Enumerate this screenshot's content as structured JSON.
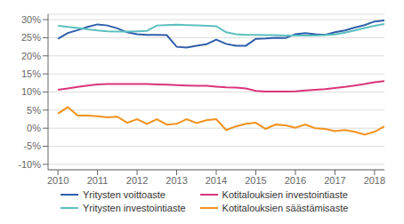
{
  "chart_data": {
    "type": "line",
    "title": "",
    "x": [
      2010.0,
      2010.25,
      2010.5,
      2010.75,
      2011.0,
      2011.25,
      2011.5,
      2011.75,
      2012.0,
      2012.25,
      2012.5,
      2012.75,
      2013.0,
      2013.25,
      2013.5,
      2013.75,
      2014.0,
      2014.25,
      2014.5,
      2014.75,
      2015.0,
      2015.25,
      2015.5,
      2015.75,
      2016.0,
      2016.25,
      2016.5,
      2016.75,
      2017.0,
      2017.25,
      2017.5,
      2017.75,
      2018.0,
      2018.25
    ],
    "series": [
      {
        "name": "Yritysten voittoaste",
        "color": "#2e5ea8",
        "values": [
          0.247,
          0.263,
          0.271,
          0.28,
          0.287,
          0.284,
          0.276,
          0.265,
          0.26,
          0.258,
          0.258,
          0.257,
          0.225,
          0.223,
          0.228,
          0.232,
          0.245,
          0.233,
          0.228,
          0.228,
          0.247,
          0.248,
          0.25,
          0.249,
          0.26,
          0.263,
          0.26,
          0.258,
          0.265,
          0.27,
          0.278,
          0.285,
          0.295,
          0.298
        ]
      },
      {
        "name": "Kotitalouksien investointiaste",
        "color": "#d9347a",
        "values": [
          0.106,
          0.11,
          0.114,
          0.118,
          0.121,
          0.122,
          0.122,
          0.122,
          0.122,
          0.122,
          0.121,
          0.12,
          0.119,
          0.118,
          0.117,
          0.117,
          0.115,
          0.113,
          0.112,
          0.11,
          0.103,
          0.101,
          0.101,
          0.101,
          0.102,
          0.104,
          0.106,
          0.108,
          0.111,
          0.114,
          0.118,
          0.122,
          0.127,
          0.13
        ]
      },
      {
        "name": "Yritysten investointiaste",
        "color": "#5bbfbe",
        "values": [
          0.283,
          0.28,
          0.277,
          0.273,
          0.27,
          0.268,
          0.267,
          0.267,
          0.268,
          0.269,
          0.284,
          0.285,
          0.286,
          0.285,
          0.284,
          0.283,
          0.282,
          0.265,
          0.26,
          0.258,
          0.258,
          0.257,
          0.257,
          0.256,
          0.256,
          0.256,
          0.256,
          0.257,
          0.259,
          0.264,
          0.27,
          0.277,
          0.283,
          0.288
        ]
      },
      {
        "name": "Kotitalouksien säästämisaste",
        "color": "#f0921e",
        "values": [
          0.04,
          0.058,
          0.035,
          0.035,
          0.033,
          0.03,
          0.032,
          0.015,
          0.025,
          0.012,
          0.025,
          0.01,
          0.012,
          0.025,
          0.014,
          0.022,
          0.025,
          -0.005,
          0.005,
          0.012,
          0.015,
          -0.002,
          0.01,
          0.008,
          0.001,
          0.01,
          0.0,
          -0.002,
          -0.008,
          -0.005,
          -0.01,
          -0.018,
          -0.01,
          0.005
        ]
      }
    ],
    "xlim": [
      2009.75,
      2018.25
    ],
    "xticks": [
      2010,
      2011,
      2012,
      2013,
      2014,
      2015,
      2016,
      2017,
      2018
    ],
    "ylim": [
      -0.115,
      0.315
    ],
    "yticks": [
      {
        "value": -0.1,
        "label": "-10%"
      },
      {
        "value": -0.05,
        "label": "-5%"
      },
      {
        "value": 0.0,
        "label": "0%"
      },
      {
        "value": 0.05,
        "label": "5%"
      },
      {
        "value": 0.1,
        "label": "10%"
      },
      {
        "value": 0.15,
        "label": "15%"
      },
      {
        "value": 0.2,
        "label": "20%"
      },
      {
        "value": 0.25,
        "label": "25%"
      },
      {
        "value": 0.3,
        "label": "30%"
      }
    ],
    "grid": true,
    "legend": "bottom"
  }
}
